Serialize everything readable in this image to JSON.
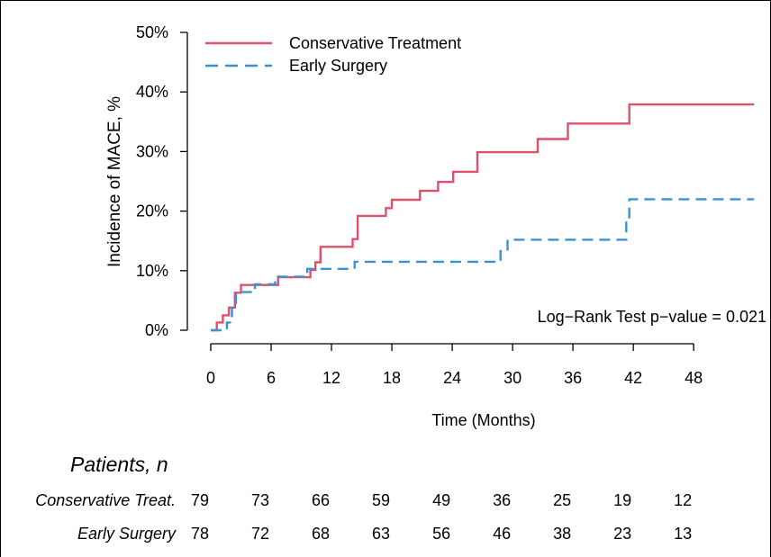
{
  "chart_data": {
    "type": "line",
    "subtype": "kaplan-meier cumulative incidence",
    "ylabel": "Incidence of MACE, %",
    "xlabel": "Time (Months)",
    "xlim": [
      0,
      54
    ],
    "ylim": [
      0,
      50
    ],
    "x_ticks": [
      0,
      6,
      12,
      18,
      24,
      30,
      36,
      42,
      48
    ],
    "y_ticks": [
      0,
      10,
      20,
      30,
      40,
      50
    ],
    "y_tick_labels": [
      "0%",
      "10%",
      "20%",
      "30%",
      "40%",
      "50%"
    ],
    "grid": false,
    "legend_position": "top-left",
    "annotation": "Log−Rank Test p−value = 0.021",
    "series": [
      {
        "name": "Conservative Treatment",
        "color": "#e0506a",
        "linestyle": "solid",
        "x": [
          0,
          0.6,
          1.2,
          1.8,
          2.4,
          3.0,
          6.7,
          9.9,
          10.4,
          10.9,
          14.1,
          14.6,
          17.4,
          18.0,
          20.8,
          22.6,
          24.1,
          26.5,
          32.5,
          35.5,
          41.6,
          54
        ],
        "y": [
          0,
          1.3,
          2.5,
          3.8,
          6.3,
          7.6,
          8.9,
          10.1,
          11.4,
          14.0,
          15.3,
          19.2,
          20.5,
          21.9,
          23.4,
          24.9,
          26.6,
          29.9,
          32.1,
          34.7,
          37.9,
          37.9
        ]
      },
      {
        "name": "Early Surgery",
        "color": "#3a93d1",
        "linestyle": "dashed",
        "x": [
          0,
          1.6,
          2.1,
          2.5,
          4.4,
          6.4,
          9.6,
          14.3,
          28.8,
          29.5,
          41.3,
          41.6,
          54
        ],
        "y": [
          0,
          1.3,
          3.8,
          6.4,
          7.7,
          9.0,
          10.3,
          11.5,
          13.3,
          15.2,
          18.6,
          22.0,
          22.0
        ]
      }
    ]
  },
  "risk_table": {
    "title": "Patients, n",
    "times": [
      0,
      6,
      12,
      18,
      24,
      30,
      36,
      42,
      48
    ],
    "rows": [
      {
        "label": "Conservative Treat.",
        "values": [
          "79",
          "73",
          "66",
          "59",
          "49",
          "36",
          "25",
          "19",
          "12"
        ]
      },
      {
        "label": "Early Surgery",
        "values": [
          "78",
          "72",
          "68",
          "63",
          "56",
          "46",
          "38",
          "23",
          "13"
        ]
      }
    ]
  }
}
